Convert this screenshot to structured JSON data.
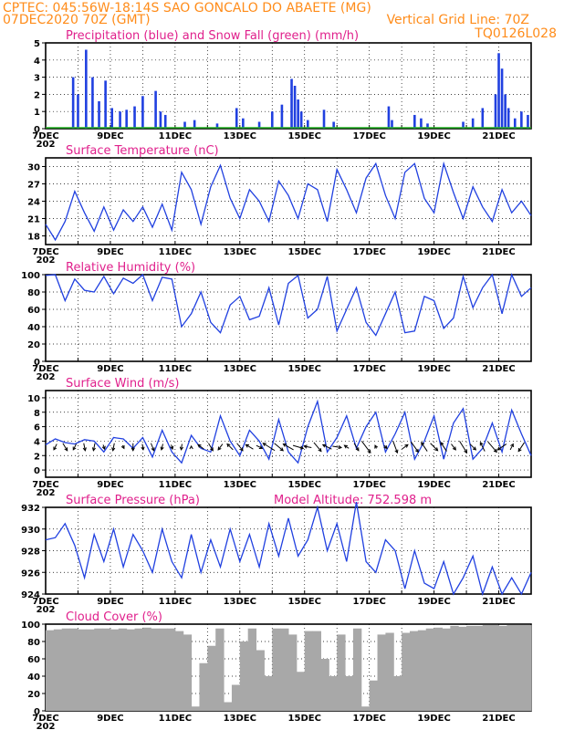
{
  "header": {
    "line1": "CPTEC:  045:56W-18:14S  SAO GONCALO DO ABAETE (MG)",
    "line2_left": "07DEC2020 70Z (GMT)",
    "line2_right": "Vertical Grid Line: 70Z",
    "line3_right": "TQ0126L028",
    "cut_label": "202"
  },
  "colors": {
    "header": "#ff8c1a",
    "title": "#e0208c",
    "line": "#2040e0",
    "snow": "#20b020",
    "cloud": "#a8a8a8",
    "grid": "#000000"
  },
  "x_labels": [
    "7DEC",
    "9DEC",
    "11DEC",
    "13DEC",
    "15DEC",
    "17DEC",
    "19DEC",
    "21DEC"
  ],
  "chart_data": [
    {
      "type": "bar",
      "title": "Precipitation (blue) and Snow Fall (green) (mm/h)",
      "ylim": [
        0,
        5
      ],
      "yticks": [
        0,
        1,
        2,
        3,
        4,
        5
      ],
      "grid": true,
      "series": [
        {
          "name": "Precipitation",
          "color": "#2040e0",
          "x": [
            7.85,
            8.0,
            8.25,
            8.45,
            8.65,
            8.85,
            9.05,
            9.3,
            9.5,
            9.75,
            10.0,
            10.4,
            10.55,
            10.7,
            11.3,
            11.6,
            12.3,
            12.9,
            13.1,
            13.6,
            14.0,
            14.3,
            14.6,
            14.7,
            14.8,
            14.9,
            15.1,
            15.6,
            15.9,
            17.6,
            17.7,
            18.4,
            18.6,
            18.8,
            19.9,
            20.2,
            20.5,
            20.9,
            21.0,
            21.1,
            21.2,
            21.3,
            21.5,
            21.7,
            21.9
          ],
          "values": [
            3.0,
            2.0,
            4.6,
            3.0,
            1.6,
            2.8,
            1.2,
            1.0,
            1.1,
            1.3,
            1.9,
            2.2,
            1.0,
            0.8,
            0.4,
            0.5,
            0.3,
            1.2,
            0.6,
            0.4,
            1.0,
            1.4,
            2.9,
            2.5,
            1.7,
            1.0,
            0.5,
            1.1,
            0.4,
            1.3,
            0.5,
            0.8,
            0.6,
            0.3,
            0.4,
            0.6,
            1.2,
            2.0,
            4.4,
            3.5,
            2.0,
            1.2,
            0.6,
            1.0,
            0.8
          ]
        },
        {
          "name": "Snow Fall",
          "color": "#20b020",
          "x": [],
          "values": []
        }
      ]
    },
    {
      "type": "line",
      "title": "Surface Temperature (nC)",
      "ylim": [
        16.5,
        31.5
      ],
      "yticks": [
        18,
        21,
        24,
        27,
        30
      ],
      "grid": true,
      "x": [
        7.0,
        7.3,
        7.6,
        7.9,
        8.2,
        8.5,
        8.8,
        9.1,
        9.4,
        9.7,
        10.0,
        10.3,
        10.6,
        10.9,
        11.2,
        11.5,
        11.8,
        12.1,
        12.4,
        12.7,
        13.0,
        13.3,
        13.6,
        13.9,
        14.2,
        14.5,
        14.8,
        15.1,
        15.4,
        15.7,
        16.0,
        16.3,
        16.6,
        16.9,
        17.2,
        17.5,
        17.8,
        18.1,
        18.4,
        18.7,
        19.0,
        19.3,
        19.6,
        19.9,
        20.2,
        20.5,
        20.8,
        21.1,
        21.4,
        21.7,
        22.0
      ],
      "series": [
        {
          "values": [
            20.0,
            17.3,
            20.5,
            25.7,
            22.0,
            18.8,
            23.0,
            19.0,
            22.5,
            20.5,
            23.0,
            19.5,
            23.5,
            19.0,
            29.0,
            26.0,
            20.0,
            26.5,
            30.2,
            24.5,
            21.0,
            26.0,
            24.0,
            20.5,
            27.5,
            25.0,
            21.0,
            27.0,
            26.0,
            20.5,
            29.5,
            26.0,
            22.0,
            28.0,
            30.5,
            25.0,
            21.0,
            29.0,
            30.5,
            24.5,
            22.0,
            30.5,
            25.5,
            21.0,
            26.5,
            23.0,
            20.5,
            26.0,
            22.0,
            24.0,
            21.5
          ]
        }
      ]
    },
    {
      "type": "line",
      "title": "Relative Humidity (%)",
      "ylim": [
        0,
        100
      ],
      "yticks": [
        0,
        20,
        40,
        60,
        80,
        100
      ],
      "grid": true,
      "x": [
        7.0,
        7.3,
        7.6,
        7.9,
        8.2,
        8.5,
        8.8,
        9.1,
        9.4,
        9.7,
        10.0,
        10.3,
        10.6,
        10.9,
        11.2,
        11.5,
        11.8,
        12.1,
        12.4,
        12.7,
        13.0,
        13.3,
        13.6,
        13.9,
        14.2,
        14.5,
        14.8,
        15.1,
        15.4,
        15.7,
        16.0,
        16.3,
        16.6,
        16.9,
        17.2,
        17.5,
        17.8,
        18.1,
        18.4,
        18.7,
        19.0,
        19.3,
        19.6,
        19.9,
        20.2,
        20.5,
        20.8,
        21.1,
        21.4,
        21.7,
        22.0
      ],
      "series": [
        {
          "values": [
            99,
            100,
            70,
            95,
            82,
            80,
            98,
            78,
            96,
            90,
            100,
            70,
            97,
            95,
            40,
            55,
            80,
            45,
            33,
            65,
            75,
            48,
            52,
            85,
            42,
            90,
            99,
            50,
            60,
            98,
            35,
            60,
            85,
            45,
            30,
            55,
            80,
            33,
            35,
            75,
            70,
            38,
            50,
            98,
            62,
            85,
            100,
            55,
            100,
            75,
            85
          ]
        }
      ]
    },
    {
      "type": "line",
      "title": "Surface Wind (m/s)",
      "ylim": [
        -1,
        11
      ],
      "yticks": [
        0,
        2,
        4,
        6,
        8,
        10
      ],
      "grid": true,
      "x": [
        7.0,
        7.3,
        7.6,
        7.9,
        8.2,
        8.5,
        8.8,
        9.1,
        9.4,
        9.7,
        10.0,
        10.3,
        10.6,
        10.9,
        11.2,
        11.5,
        11.8,
        12.1,
        12.4,
        12.7,
        13.0,
        13.3,
        13.6,
        13.9,
        14.2,
        14.5,
        14.8,
        15.1,
        15.4,
        15.7,
        16.0,
        16.3,
        16.6,
        16.9,
        17.2,
        17.5,
        17.8,
        18.1,
        18.4,
        18.7,
        19.0,
        19.3,
        19.6,
        19.9,
        20.2,
        20.5,
        20.8,
        21.1,
        21.4,
        21.7,
        22.0
      ],
      "series": [
        {
          "values": [
            3.5,
            4.3,
            3.8,
            3.6,
            4.2,
            4.0,
            2.5,
            4.5,
            4.3,
            3.0,
            4.5,
            1.8,
            5.5,
            2.5,
            1.0,
            4.8,
            3.0,
            2.5,
            7.5,
            4.0,
            2.0,
            5.5,
            4.0,
            1.5,
            7.0,
            2.5,
            1.0,
            6.0,
            9.5,
            2.5,
            4.5,
            7.5,
            3.0,
            6.0,
            8.0,
            2.5,
            5.0,
            8.0,
            1.5,
            4.0,
            7.5,
            1.5,
            6.5,
            8.5,
            1.5,
            3.0,
            6.5,
            2.5,
            8.3,
            5.0,
            2.0
          ]
        }
      ],
      "vectors": {
        "x": [
          7.3,
          7.6,
          7.9,
          8.2,
          8.5,
          8.8,
          9.1,
          9.4,
          9.7,
          10.0,
          10.3,
          10.6,
          10.9,
          11.2,
          11.5,
          11.8,
          12.1,
          12.4,
          12.7,
          13.0,
          13.3,
          13.6,
          13.9,
          14.2,
          14.5,
          14.8,
          15.1,
          15.4,
          15.7,
          16.0,
          16.3,
          16.6,
          16.9,
          17.2,
          17.5,
          17.8,
          18.1,
          18.4,
          18.7,
          19.0,
          19.3,
          19.6,
          19.9,
          20.2,
          20.5,
          20.8,
          21.1,
          21.4,
          21.7
        ],
        "u": [
          -1.0,
          1.5,
          -1.0,
          0.5,
          -0.5,
          0.5,
          -0.5,
          0.5,
          0.0,
          0.3,
          1.0,
          -0.5,
          0.5,
          -0.3,
          0.0,
          -2.0,
          1.5,
          -1.5,
          -2.0,
          2.0,
          -2.5,
          2.0,
          -4.0,
          3.0,
          -3.5,
          3.5,
          -2.5,
          2.5,
          -3.0,
          3.0,
          -1.5,
          1.5,
          3.0,
          -0.5,
          1.0,
          1.5,
          2.0,
          2.5,
          -2.0,
          2.5,
          -2.0,
          1.5,
          2.5,
          2.0,
          -1.5,
          3.0,
          -3.0,
          1.0,
          -2.0
        ],
        "v": [
          -2.0,
          -2.5,
          -2.0,
          -2.5,
          -2.5,
          -1.5,
          -2.5,
          -1.0,
          -2.5,
          -2.0,
          -2.5,
          -2.0,
          -1.5,
          -2.0,
          0.5,
          1.5,
          -2.5,
          -2.0,
          2.0,
          -2.5,
          1.5,
          -1.0,
          2.5,
          -2.5,
          2.0,
          -1.0,
          0.5,
          -3.0,
          1.5,
          -0.5,
          1.0,
          -2.5,
          -4.0,
          1.0,
          -1.0,
          -4.0,
          1.5,
          -3.5,
          3.0,
          -2.5,
          3.0,
          -2.0,
          -4.0,
          -2.0,
          3.0,
          -3.5,
          -2.0,
          2.0,
          -3.0
        ]
      }
    },
    {
      "type": "line",
      "title": "Surface Pressure (hPa)",
      "annotation": "Model Altitude: 752.598  m",
      "ylim": [
        924,
        932
      ],
      "yticks": [
        924,
        926,
        928,
        930,
        932
      ],
      "grid": true,
      "x": [
        7.0,
        7.3,
        7.6,
        7.9,
        8.2,
        8.5,
        8.8,
        9.1,
        9.4,
        9.7,
        10.0,
        10.3,
        10.6,
        10.9,
        11.2,
        11.5,
        11.8,
        12.1,
        12.4,
        12.7,
        13.0,
        13.3,
        13.6,
        13.9,
        14.2,
        14.5,
        14.8,
        15.1,
        15.4,
        15.7,
        16.0,
        16.3,
        16.6,
        16.9,
        17.2,
        17.5,
        17.8,
        18.1,
        18.4,
        18.7,
        19.0,
        19.3,
        19.6,
        19.9,
        20.2,
        20.5,
        20.8,
        21.1,
        21.4,
        21.7,
        22.0
      ],
      "series": [
        {
          "values": [
            929.0,
            929.2,
            930.5,
            928.5,
            925.5,
            929.5,
            927.0,
            930.0,
            926.5,
            929.5,
            928.0,
            926.0,
            930.0,
            927.0,
            925.5,
            929.5,
            926.0,
            929.0,
            926.5,
            930.0,
            927.0,
            929.5,
            926.5,
            930.5,
            927.5,
            931.0,
            927.5,
            929.0,
            932.0,
            928.0,
            930.5,
            927.0,
            932.5,
            927.0,
            926.0,
            929.0,
            928.0,
            924.5,
            928.0,
            925.0,
            924.5,
            927.0,
            924.0,
            925.5,
            927.5,
            924.0,
            926.5,
            924.0,
            925.5,
            924.0,
            926.0
          ]
        }
      ]
    },
    {
      "type": "bar",
      "title": "Cloud Cover (%)",
      "ylim": [
        0,
        100
      ],
      "yticks": [
        0,
        20,
        40,
        60,
        80,
        100
      ],
      "grid": true,
      "x": [
        7.0,
        7.25,
        7.5,
        7.75,
        8.0,
        8.25,
        8.5,
        8.75,
        9.0,
        9.25,
        9.5,
        9.75,
        10.0,
        10.25,
        10.5,
        10.75,
        11.0,
        11.25,
        11.5,
        11.75,
        12.0,
        12.25,
        12.5,
        12.75,
        13.0,
        13.25,
        13.5,
        13.75,
        14.0,
        14.25,
        14.5,
        14.75,
        15.0,
        15.25,
        15.5,
        15.75,
        16.0,
        16.25,
        16.5,
        16.75,
        17.0,
        17.25,
        17.5,
        17.75,
        18.0,
        18.25,
        18.5,
        18.75,
        19.0,
        19.25,
        19.5,
        19.75,
        20.0,
        20.25,
        20.5,
        20.75,
        21.0,
        21.25,
        21.5,
        21.75
      ],
      "series": [
        {
          "name": "Cloud Cover",
          "values": [
            93,
            94,
            95,
            95,
            94,
            94,
            95,
            95,
            94,
            95,
            94,
            95,
            96,
            95,
            95,
            95,
            92,
            88,
            5,
            55,
            75,
            95,
            10,
            30,
            80,
            95,
            70,
            40,
            95,
            95,
            88,
            45,
            92,
            92,
            60,
            40,
            88,
            40,
            95,
            5,
            35,
            88,
            90,
            40,
            90,
            92,
            93,
            95,
            96,
            95,
            98,
            97,
            98,
            98,
            99,
            99,
            98,
            99,
            99,
            99
          ]
        }
      ]
    }
  ]
}
